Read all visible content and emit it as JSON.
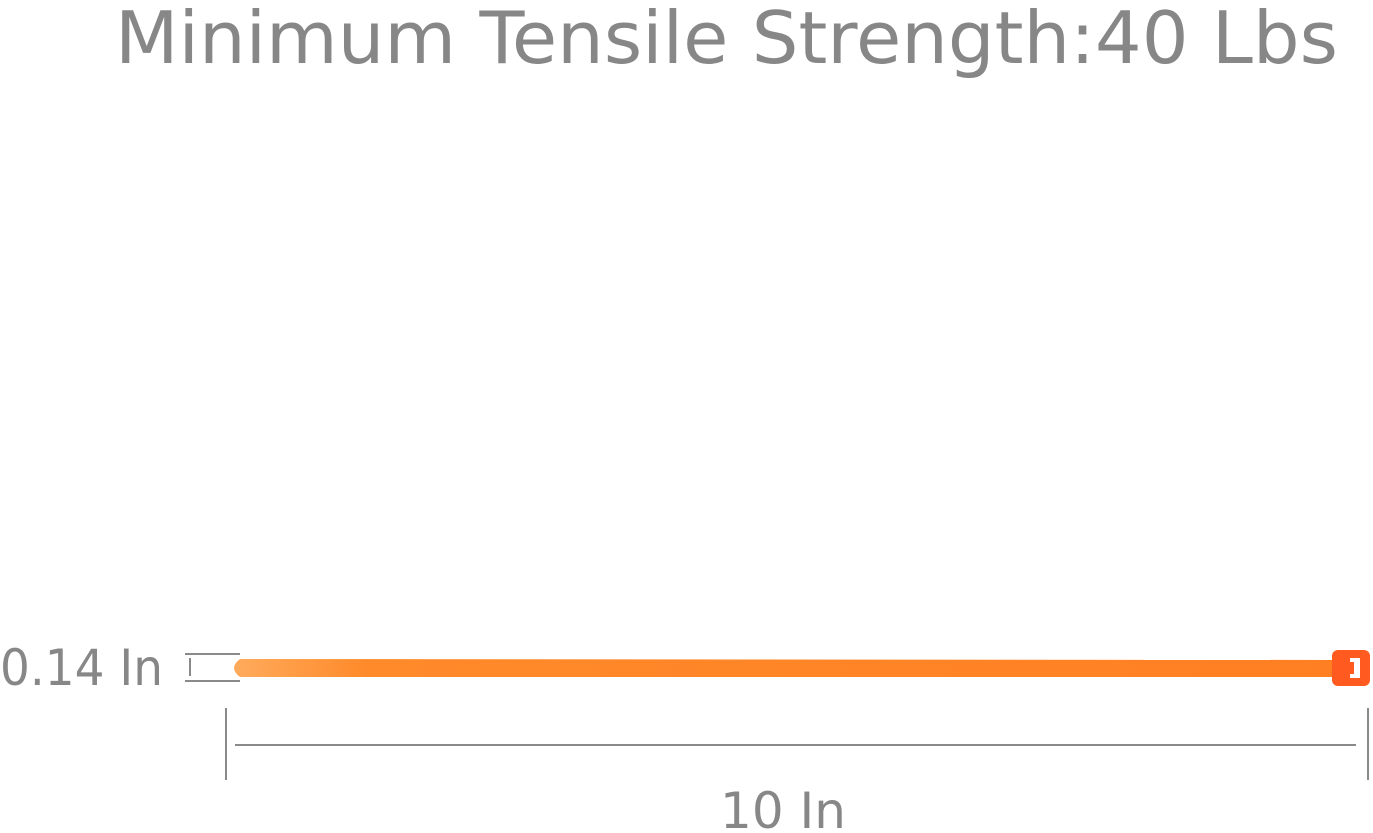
{
  "title": "Minimum Tensile Strength:40 Lbs",
  "dimensions": {
    "width_label": "0.14 In",
    "length_label": "10 In"
  },
  "colors": {
    "text": "#878787",
    "tie": "#ff8a2a",
    "tie_head": "#ff5a1f",
    "lines": "#8a8a8a"
  }
}
